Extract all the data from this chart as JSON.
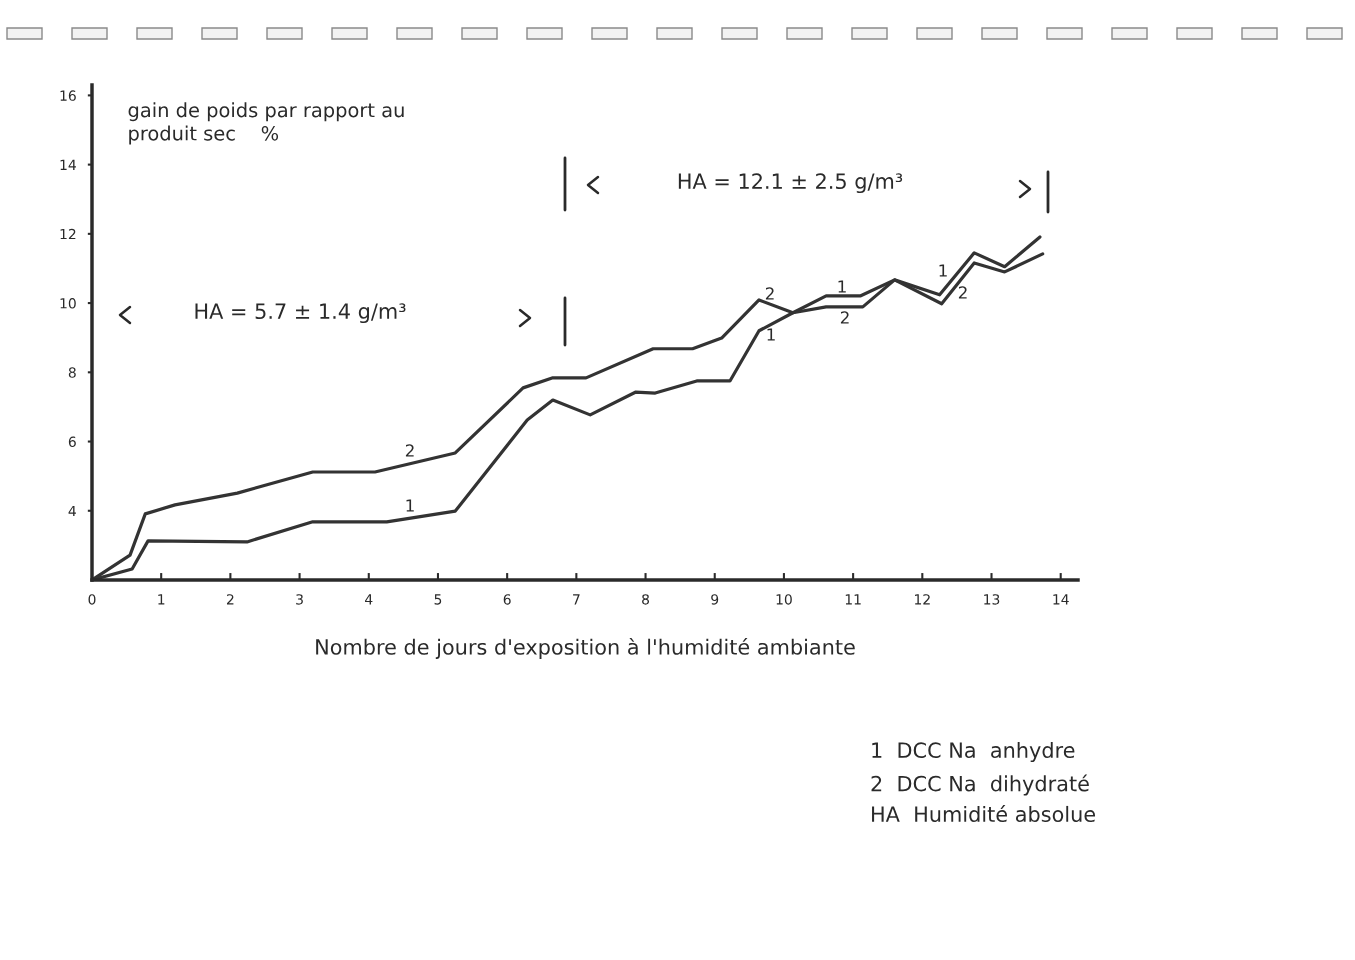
{
  "chart_data": {
    "type": "line",
    "xlabel": "Nombre de jours d'exposition à l'humidité ambiante",
    "ylabel": "gain de poids par rapport au\nproduit sec    %",
    "xlim": [
      0,
      14.25
    ],
    "ylim": [
      2,
      16.3
    ],
    "xticks": [
      0,
      1,
      2,
      3,
      4,
      5,
      6,
      7,
      8,
      9,
      10,
      11,
      12,
      13,
      14
    ],
    "yticks": [
      4,
      6,
      8,
      10,
      12,
      14,
      16
    ],
    "grid": false,
    "line_style": "solid",
    "series": [
      {
        "color": "#333333",
        "x": [
          0,
          0.58,
          0.81,
          2.24,
          3.19,
          4.26,
          5.25,
          6.29,
          6.66,
          7.2,
          7.86,
          8.14,
          8.74,
          9.22,
          9.64,
          10.13,
          10.61,
          11.11,
          11.6,
          12.25,
          12.75,
          13.19,
          13.7
        ],
        "values": [
          2,
          2.32,
          3.13,
          3.1,
          3.68,
          3.68,
          3.99,
          6.62,
          7.2,
          6.77,
          7.43,
          7.4,
          7.75,
          7.75,
          9.2,
          9.72,
          10.21,
          10.21,
          10.67,
          10.24,
          11.45,
          11.05,
          11.91
        ]
      },
      {
        "color": "#333333",
        "x": [
          0,
          0.55,
          0.77,
          1.2,
          2.1,
          3.19,
          4.09,
          5.25,
          6.23,
          6.66,
          7.14,
          8.11,
          8.68,
          9.1,
          9.64,
          10.13,
          10.61,
          11.14,
          11.6,
          12.28,
          12.75,
          13.19,
          13.74
        ],
        "values": [
          2,
          2.72,
          3.91,
          4.17,
          4.51,
          5.12,
          5.12,
          5.67,
          7.55,
          7.84,
          7.84,
          8.68,
          8.68,
          8.99,
          10.09,
          9.72,
          9.89,
          9.89,
          10.67,
          9.98,
          11.16,
          10.9,
          11.42
        ]
      }
    ],
    "annotations": [
      "HA = 5.7 ± 1.4 g/m³",
      "HA = 12.1 ± 2.5 g/m³",
      "2",
      "1",
      "2",
      "1",
      "1",
      "2",
      "1",
      "2",
      "1  DCC Na  anhydre",
      "2  DCC Na  dihydraté",
      "HA  Humidité absolue"
    ]
  }
}
